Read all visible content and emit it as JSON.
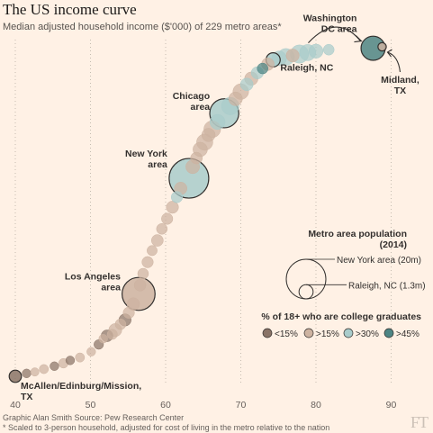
{
  "title": "The US income curve",
  "subtitle": "Median adjusted household income ($'000) of 229 metro areas*",
  "footer": {
    "credit": "Graphic Alan Smith   Source: Pew Research Center",
    "note": "* Scaled to 3-person household, adjusted for cost of living in the metro relative to the nation",
    "logo": "FT"
  },
  "chart_data": {
    "type": "scatter",
    "xlim": [
      38,
      95
    ],
    "xticks": [
      "40",
      "50",
      "60",
      "70",
      "80",
      "90"
    ],
    "xtick_values": [
      40,
      50,
      60,
      70,
      80,
      90
    ],
    "grid": "vertical dotted",
    "colors": {
      "lt15": "#8a7467",
      "gt15": "#cdb3a1",
      "gt30": "#a9cccb",
      "gt45": "#4d8584",
      "highlight_stroke": "#33302e"
    },
    "legend": {
      "population_title": "Metro area population\n(2014)",
      "population_items": [
        {
          "label": "New York area (20m)",
          "population_m": 20
        },
        {
          "label": "Raleigh, NC (1.3m)",
          "population_m": 1.3
        }
      ],
      "education_title": "% of 18+ who are college graduates",
      "education_items": [
        {
          "label": "<15%",
          "key": "lt15"
        },
        {
          "label": ">15%",
          "key": "gt15"
        },
        {
          "label": ">30%",
          "key": "gt30"
        },
        {
          "label": ">45%",
          "key": "gt45"
        }
      ]
    },
    "annotations": [
      {
        "label": "Washington\nDC area",
        "income": 87.6,
        "rank": 228,
        "pop_m": 6.0,
        "edu": "gt45"
      },
      {
        "label": "Raleigh, NC",
        "income": 74.3,
        "rank": 220,
        "pop_m": 1.3,
        "edu": "gt30"
      },
      {
        "label": "Midland,\nTX",
        "income": 88.8,
        "rank": 229,
        "pop_m": 0.15,
        "edu": "gt15"
      },
      {
        "label": "Chicago\narea",
        "income": 67.8,
        "rank": 183,
        "pop_m": 9.5,
        "edu": "gt30"
      },
      {
        "label": "New York\narea",
        "income": 63.1,
        "rank": 138,
        "pop_m": 20,
        "edu": "gt30"
      },
      {
        "label": "Los Angeles\narea",
        "income": 56.4,
        "rank": 58,
        "pop_m": 13,
        "edu": "gt15"
      },
      {
        "label": "McAllen/Edinburg/Mission,\nTX",
        "income": 40.0,
        "rank": 1,
        "pop_m": 0.8,
        "edu": "lt15"
      }
    ],
    "points": [
      {
        "income": 41.5,
        "rank": 3,
        "pop_m": 0.2,
        "edu": "lt15"
      },
      {
        "income": 42.6,
        "rank": 4,
        "pop_m": 0.15,
        "edu": "gt15"
      },
      {
        "income": 43.8,
        "rank": 6,
        "pop_m": 0.25,
        "edu": "gt15"
      },
      {
        "income": 45.2,
        "rank": 8,
        "pop_m": 0.2,
        "edu": "lt15"
      },
      {
        "income": 46.4,
        "rank": 10,
        "pop_m": 0.3,
        "edu": "gt15"
      },
      {
        "income": 47.3,
        "rank": 12,
        "pop_m": 0.2,
        "edu": "lt15"
      },
      {
        "income": 48.6,
        "rank": 14,
        "pop_m": 0.25,
        "edu": "gt15"
      },
      {
        "income": 50.1,
        "rank": 18,
        "pop_m": 0.2,
        "edu": "gt15"
      },
      {
        "income": 51.1,
        "rank": 23,
        "pop_m": 0.3,
        "edu": "lt15"
      },
      {
        "income": 51.7,
        "rank": 27,
        "pop_m": 0.2,
        "edu": "gt15"
      },
      {
        "income": 52.2,
        "rank": 29,
        "pop_m": 0.7,
        "edu": "lt15"
      },
      {
        "income": 52.9,
        "rank": 30,
        "pop_m": 0.4,
        "edu": "gt15"
      },
      {
        "income": 53.3,
        "rank": 33,
        "pop_m": 1.0,
        "edu": "gt15"
      },
      {
        "income": 54.0,
        "rank": 37,
        "pop_m": 0.5,
        "edu": "gt15"
      },
      {
        "income": 54.6,
        "rank": 40,
        "pop_m": 0.8,
        "edu": "lt15"
      },
      {
        "income": 55.1,
        "rank": 45,
        "pop_m": 0.6,
        "edu": "gt15"
      },
      {
        "income": 55.7,
        "rank": 51,
        "pop_m": 0.9,
        "edu": "gt15"
      },
      {
        "income": 56.6,
        "rank": 64,
        "pop_m": 0.7,
        "edu": "gt15"
      },
      {
        "income": 57.0,
        "rank": 72,
        "pop_m": 0.5,
        "edu": "gt15"
      },
      {
        "income": 57.6,
        "rank": 80,
        "pop_m": 0.6,
        "edu": "gt15"
      },
      {
        "income": 58.2,
        "rank": 88,
        "pop_m": 0.4,
        "edu": "gt15"
      },
      {
        "income": 58.9,
        "rank": 95,
        "pop_m": 0.7,
        "edu": "gt15"
      },
      {
        "income": 59.5,
        "rank": 103,
        "pop_m": 0.5,
        "edu": "gt15"
      },
      {
        "income": 60.2,
        "rank": 110,
        "pop_m": 0.6,
        "edu": "gt15"
      },
      {
        "income": 60.9,
        "rank": 118,
        "pop_m": 0.8,
        "edu": "gt15"
      },
      {
        "income": 61.5,
        "rank": 125,
        "pop_m": 0.6,
        "edu": "gt30"
      },
      {
        "income": 62.0,
        "rank": 131,
        "pop_m": 0.9,
        "edu": "gt15"
      },
      {
        "income": 63.6,
        "rank": 146,
        "pop_m": 1.2,
        "edu": "gt15"
      },
      {
        "income": 64.1,
        "rank": 152,
        "pop_m": 0.7,
        "edu": "gt15"
      },
      {
        "income": 64.6,
        "rank": 158,
        "pop_m": 1.4,
        "edu": "gt15"
      },
      {
        "income": 65.2,
        "rank": 163,
        "pop_m": 2.0,
        "edu": "gt15"
      },
      {
        "income": 65.7,
        "rank": 168,
        "pop_m": 1.1,
        "edu": "gt15"
      },
      {
        "income": 66.2,
        "rank": 172,
        "pop_m": 2.2,
        "edu": "gt15"
      },
      {
        "income": 66.9,
        "rank": 177,
        "pop_m": 1.6,
        "edu": "gt30"
      },
      {
        "income": 68.6,
        "rank": 188,
        "pop_m": 2.5,
        "edu": "gt30"
      },
      {
        "income": 69.3,
        "rank": 193,
        "pop_m": 1.2,
        "edu": "gt15"
      },
      {
        "income": 70.0,
        "rank": 198,
        "pop_m": 1.8,
        "edu": "gt15"
      },
      {
        "income": 70.8,
        "rank": 203,
        "pop_m": 0.9,
        "edu": "gt30"
      },
      {
        "income": 71.4,
        "rank": 207,
        "pop_m": 1.1,
        "edu": "gt15"
      },
      {
        "income": 72.2,
        "rank": 211,
        "pop_m": 0.8,
        "edu": "gt30"
      },
      {
        "income": 72.9,
        "rank": 214,
        "pop_m": 0.5,
        "edu": "gt45"
      },
      {
        "income": 73.6,
        "rank": 217,
        "pop_m": 0.9,
        "edu": "gt15"
      },
      {
        "income": 75.1,
        "rank": 221,
        "pop_m": 1.5,
        "edu": "gt30"
      },
      {
        "income": 76.0,
        "rank": 222,
        "pop_m": 2.2,
        "edu": "gt30"
      },
      {
        "income": 76.9,
        "rank": 223,
        "pop_m": 1.0,
        "edu": "gt15"
      },
      {
        "income": 77.8,
        "rank": 224,
        "pop_m": 2.8,
        "edu": "gt30"
      },
      {
        "income": 78.9,
        "rank": 225,
        "pop_m": 2.0,
        "edu": "gt30"
      },
      {
        "income": 80.0,
        "rank": 226,
        "pop_m": 1.3,
        "edu": "gt30"
      },
      {
        "income": 81.7,
        "rank": 227,
        "pop_m": 0.5,
        "edu": "gt30"
      }
    ]
  }
}
